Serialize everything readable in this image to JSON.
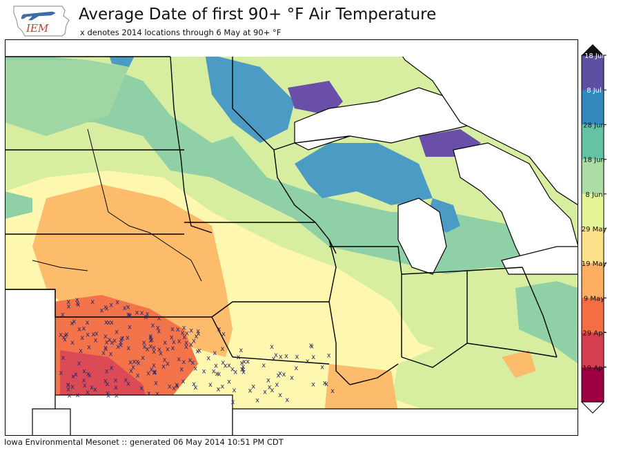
{
  "header": {
    "logo_text": "IEM",
    "title": "Average Date of first 90+ °F Air Temperature",
    "subtitle": "x denotes 2014 locations through 6 May at 90+ °F"
  },
  "map": {
    "marker_symbol": "x",
    "marker_color": "#2b2b6b",
    "water_color": "#ffffff",
    "boundary_color": "#000000"
  },
  "colorbar": {
    "labels": [
      "18 Jul",
      "8 Jul",
      "28 Jun",
      "18 Jun",
      "8 Jun",
      "29 May",
      "19 May",
      "9 May",
      "29 Apr",
      "19 Apr"
    ],
    "colors": [
      "#5e4fa2",
      "#3288bd",
      "#66c2a5",
      "#abdda4",
      "#e6f598",
      "#fee08b",
      "#fdae61",
      "#f46d43",
      "#d53e4f",
      "#9e0142"
    ]
  },
  "footer": {
    "text": "Iowa Environmental Mesonet :: generated 06 May 2014 10:51 PM CDT"
  }
}
